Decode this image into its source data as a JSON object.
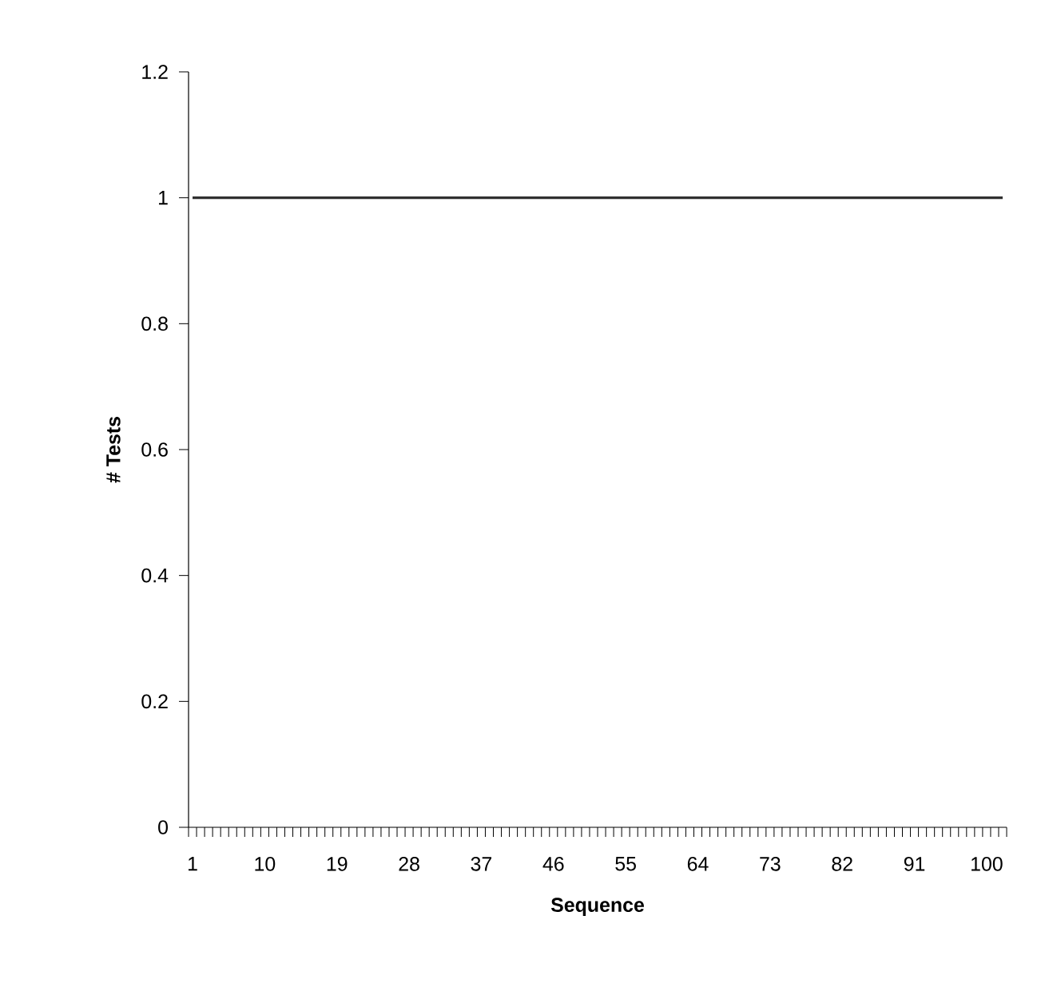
{
  "chart_data": {
    "type": "line",
    "xlabel": "Sequence",
    "ylabel": "# Tests",
    "categories": [
      "1",
      null,
      null,
      null,
      null,
      null,
      null,
      null,
      null,
      "10",
      null,
      null,
      null,
      null,
      null,
      null,
      null,
      null,
      "19",
      null,
      null,
      null,
      null,
      null,
      null,
      null,
      null,
      "28",
      null,
      null,
      null,
      null,
      null,
      null,
      null,
      null,
      "37",
      null,
      null,
      null,
      null,
      null,
      null,
      null,
      null,
      "46",
      null,
      null,
      null,
      null,
      null,
      null,
      null,
      null,
      "55",
      null,
      null,
      null,
      null,
      null,
      null,
      null,
      null,
      "64",
      null,
      null,
      null,
      null,
      null,
      null,
      null,
      null,
      "73",
      null,
      null,
      null,
      null,
      null,
      null,
      null,
      null,
      "82",
      null,
      null,
      null,
      null,
      null,
      null,
      null,
      null,
      "91",
      null,
      null,
      null,
      null,
      null,
      null,
      null,
      null,
      "100",
      null,
      null
    ],
    "series": [
      {
        "color": "#303030",
        "values": [
          1,
          1,
          1,
          1,
          1,
          1,
          1,
          1,
          1,
          1,
          1,
          1,
          1,
          1,
          1,
          1,
          1,
          1,
          1,
          1,
          1,
          1,
          1,
          1,
          1,
          1,
          1,
          1,
          1,
          1,
          1,
          1,
          1,
          1,
          1,
          1,
          1,
          1,
          1,
          1,
          1,
          1,
          1,
          1,
          1,
          1,
          1,
          1,
          1,
          1,
          1,
          1,
          1,
          1,
          1,
          1,
          1,
          1,
          1,
          1,
          1,
          1,
          1,
          1,
          1,
          1,
          1,
          1,
          1,
          1,
          1,
          1,
          1,
          1,
          1,
          1,
          1,
          1,
          1,
          1,
          1,
          1,
          1,
          1,
          1,
          1,
          1,
          1,
          1,
          1,
          1,
          1,
          1,
          1,
          1,
          1,
          1,
          1,
          1,
          1,
          1,
          1
        ]
      }
    ],
    "ylim": [
      0,
      1.2
    ],
    "yticks": [
      0,
      0.2,
      0.4,
      0.6,
      0.8,
      1,
      1.2
    ],
    "grid": false,
    "marker": "none",
    "line_style": "solid"
  }
}
